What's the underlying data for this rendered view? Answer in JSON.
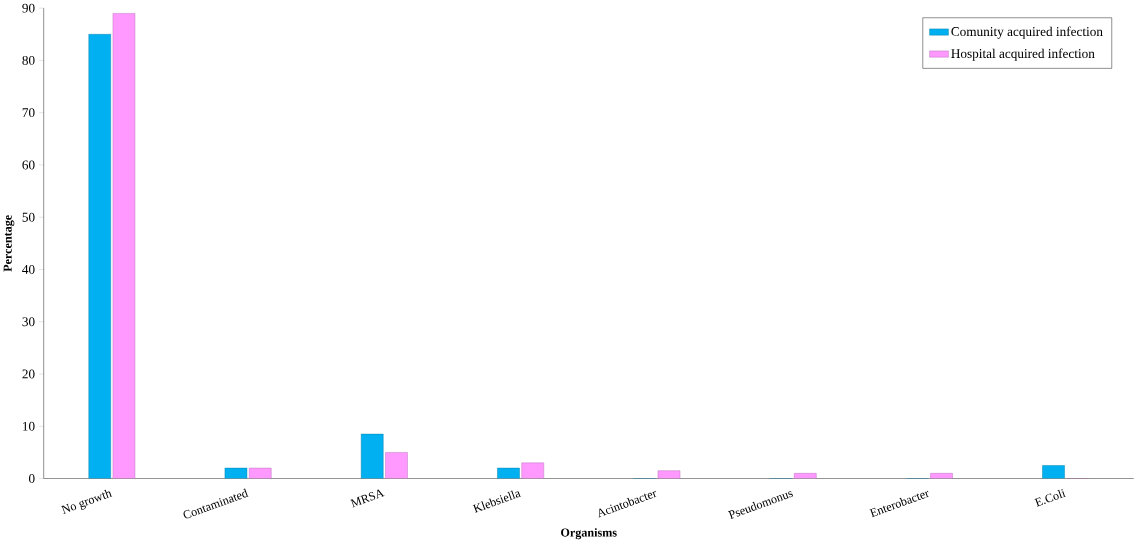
{
  "chart_data": {
    "type": "bar",
    "xlabel": "Organisms",
    "ylabel": "Percentage",
    "categories": [
      "No growth",
      "Contaminated",
      "MRSA",
      "Klebsiella",
      "Acintobacter",
      "Pseudomonus",
      "Enterobacter",
      "E.Coli"
    ],
    "series": [
      {
        "name": "Comunity acquired infection",
        "color": "#00b0f0",
        "values": [
          85,
          2,
          8.5,
          2,
          0,
          0,
          0,
          2.5
        ]
      },
      {
        "name": "Hospital acquired infection",
        "color": "#ff99ff",
        "values": [
          89,
          2,
          5,
          3,
          1.5,
          1,
          1,
          0
        ]
      }
    ],
    "ylim": [
      0,
      90
    ],
    "yticks": [
      0,
      10,
      20,
      30,
      40,
      50,
      60,
      70,
      80,
      90
    ],
    "legend": "top right",
    "grid": false
  }
}
